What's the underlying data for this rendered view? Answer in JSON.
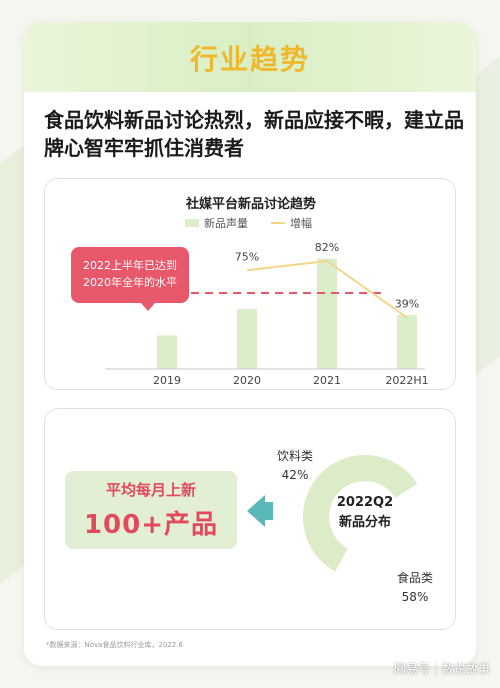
{
  "banner": {
    "title": "行业趋势"
  },
  "headline": "食品饮料新品讨论热烈，新品应接不暇，建立品牌心智牢牢抓住消费者",
  "chart_data": [
    {
      "type": "bar",
      "title": "社媒平台新品讨论趋势",
      "categories": [
        "2019",
        "2020",
        "2021",
        "2022H1"
      ],
      "series": [
        {
          "name": "新品声量",
          "type": "bar",
          "values": [
            28,
            50,
            92,
            45
          ]
        },
        {
          "name": "增幅",
          "type": "line",
          "values": [
            null,
            75,
            82,
            39
          ],
          "labels": [
            null,
            "75%",
            "82%",
            "39%"
          ]
        }
      ],
      "bar_ylim": [
        0,
        100
      ],
      "line_ylim": [
        0,
        120
      ],
      "reference_line": {
        "value": 45,
        "color": "#e8586b",
        "style": "dashed"
      },
      "annotation": "2022上半年已达到2020年全年的水平",
      "legend": "top-center",
      "colors": {
        "bar": "#dbeecb",
        "line": "#f3d68a",
        "ref": "#e8586b"
      }
    },
    {
      "type": "pie",
      "title": "2022Q2\n新品分布",
      "slices": [
        {
          "label": "饮料类",
          "value": 42,
          "pct": "42%",
          "color": "#f7d48b"
        },
        {
          "label": "食品类",
          "value": 58,
          "pct": "58%",
          "color": "#dcecc8"
        }
      ]
    }
  ],
  "callout": {
    "line1": "2022上半年已达到",
    "line2": "2020年全年的水平"
  },
  "kpi": {
    "line1": "平均每月上新",
    "line2": "100+产品"
  },
  "donut": {
    "center1": "2022Q2",
    "center2": "新品分布"
  },
  "footnote": "*数据来源：Nova食品饮料行业库，2022.6",
  "watermark": "网易号｜数说故事"
}
